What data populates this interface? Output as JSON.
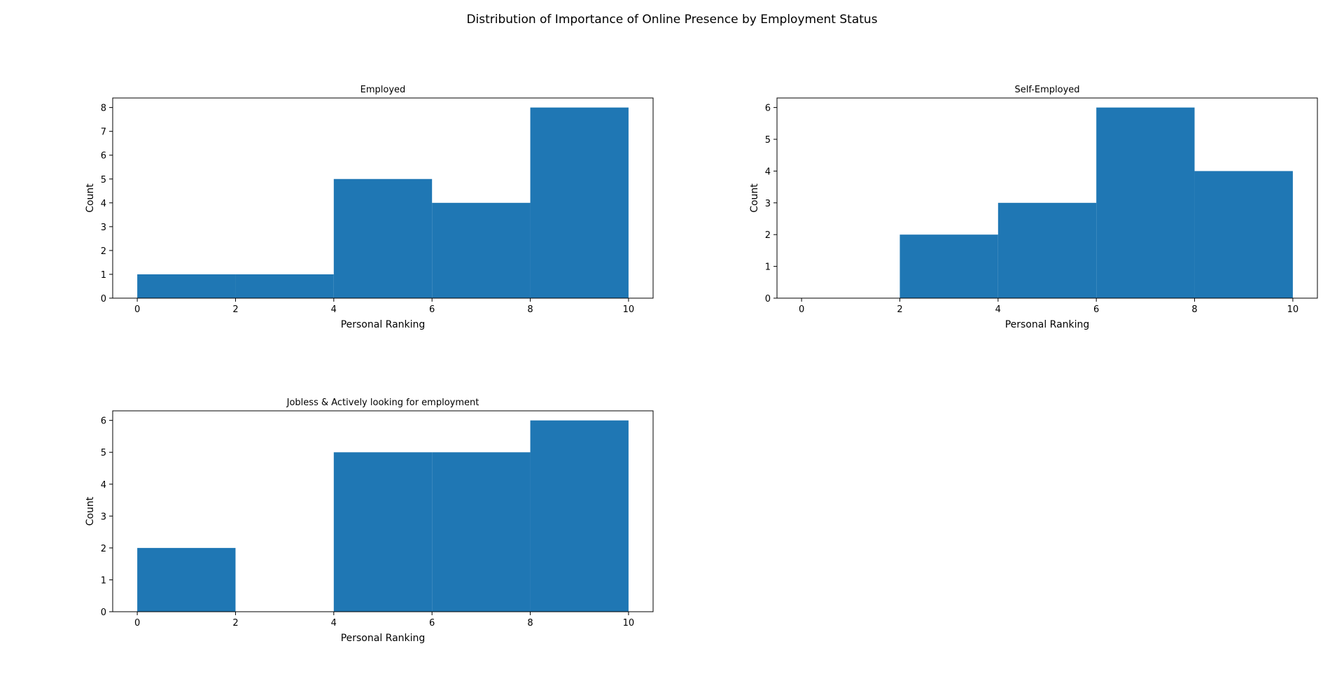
{
  "figure_title": "Distribution of Importance of Online Presence by Employment Status",
  "colors": {
    "bar": "#1f77b4",
    "background": "#ffffff",
    "axes": "#000000"
  },
  "chart_data": [
    {
      "type": "bar",
      "title": "Employed",
      "xlabel": "Personal Ranking",
      "ylabel": "Count",
      "bin_edges": [
        0,
        2,
        4,
        6,
        8,
        10
      ],
      "values": [
        1,
        1,
        5,
        4,
        8
      ],
      "xlim": [
        -0.5,
        10.5
      ],
      "ylim": [
        0,
        8.4
      ],
      "xticks": [
        0,
        2,
        4,
        6,
        8,
        10
      ],
      "yticks": [
        0,
        1,
        2,
        3,
        4,
        5,
        6,
        7,
        8
      ],
      "grid": false
    },
    {
      "type": "bar",
      "title": "Self-Employed",
      "xlabel": "Personal Ranking",
      "ylabel": "Count",
      "bin_edges": [
        0,
        2,
        4,
        6,
        8,
        10
      ],
      "values": [
        0,
        2,
        3,
        6,
        4
      ],
      "xlim": [
        -0.5,
        10.5
      ],
      "ylim": [
        0,
        6.3
      ],
      "xticks": [
        0,
        2,
        4,
        6,
        8,
        10
      ],
      "yticks": [
        0,
        1,
        2,
        3,
        4,
        5,
        6
      ],
      "grid": false
    },
    {
      "type": "bar",
      "title": "Jobless & Actively looking for employment",
      "xlabel": "Personal Ranking",
      "ylabel": "Count",
      "bin_edges": [
        0,
        2,
        4,
        6,
        8,
        10
      ],
      "values": [
        2,
        0,
        5,
        5,
        6
      ],
      "xlim": [
        -0.5,
        10.5
      ],
      "ylim": [
        0,
        6.3
      ],
      "xticks": [
        0,
        2,
        4,
        6,
        8,
        10
      ],
      "yticks": [
        0,
        1,
        2,
        3,
        4,
        5,
        6
      ],
      "grid": false
    }
  ]
}
